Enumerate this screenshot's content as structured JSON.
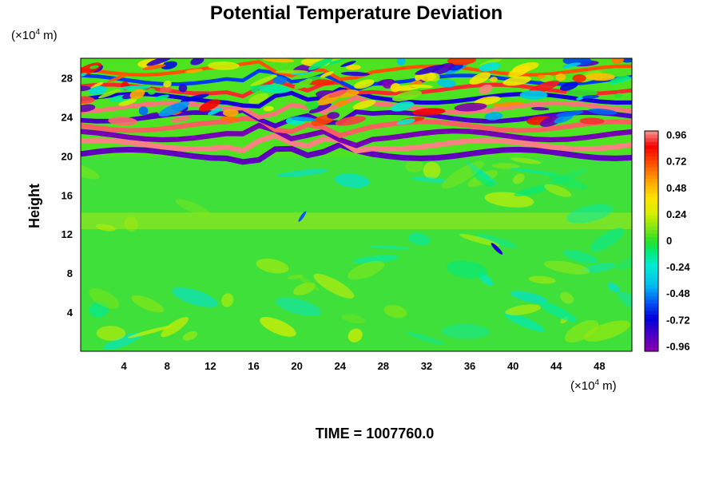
{
  "chart_data": {
    "type": "heatmap",
    "title": "Potential Temperature Deviation",
    "ylabel": "Height",
    "x_unit": {
      "prefix": "(×10",
      "exp": "4",
      "suffix": " m)"
    },
    "y_unit": {
      "prefix": "(×10",
      "exp": "4",
      "suffix": " m)"
    },
    "xlim": [
      0,
      51
    ],
    "ylim": [
      0,
      30
    ],
    "x_ticks": [
      4,
      8,
      12,
      16,
      20,
      24,
      28,
      32,
      36,
      40,
      44,
      48
    ],
    "y_ticks": [
      4,
      8,
      12,
      16,
      20,
      24,
      28
    ],
    "colorbar": {
      "range": [
        -1.0,
        1.0
      ],
      "tick_labels": [
        "0.96",
        "0.72",
        "0.48",
        "0.24",
        "0",
        "-0.24",
        "-0.48",
        "-0.72",
        "-0.96"
      ],
      "tick_values": [
        0.96,
        0.72,
        0.48,
        0.24,
        0,
        -0.24,
        -0.48,
        -0.72,
        -0.96
      ]
    },
    "footer": "TIME = 1007760.0"
  }
}
